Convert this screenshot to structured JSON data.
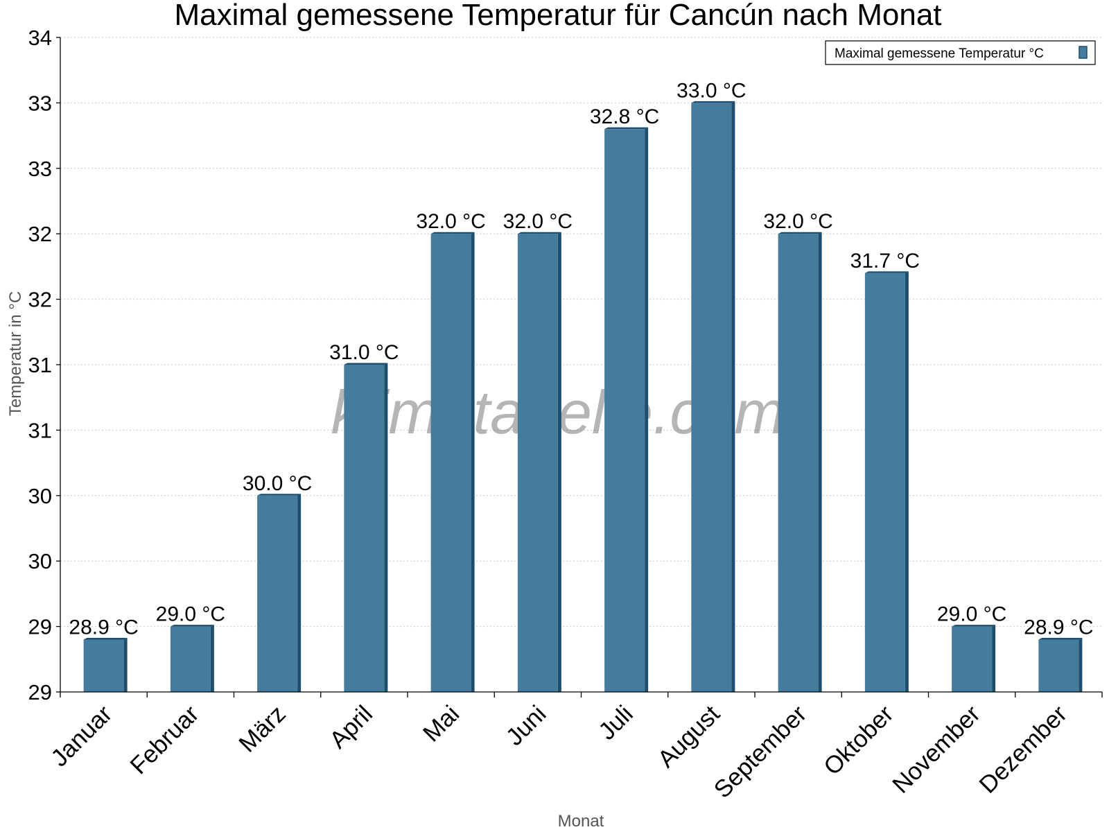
{
  "chart_data": {
    "type": "bar",
    "title": "Maximal gemessene Temperatur für Cancún nach Monat",
    "xlabel": "Monat",
    "ylabel": "Temperatur in °C",
    "categories": [
      "Januar",
      "Februar",
      "März",
      "April",
      "Mai",
      "Juni",
      "Juli",
      "August",
      "September",
      "Oktober",
      "November",
      "Dezember"
    ],
    "series": [
      {
        "name": "Maximal gemessene Temperatur °C",
        "values": [
          28.9,
          29.0,
          30.0,
          31.0,
          32.0,
          32.0,
          32.8,
          33.0,
          32.0,
          31.7,
          29.0,
          28.9
        ],
        "labels": [
          "28.9 °C",
          "29.0 °C",
          "30.0 °C",
          "31.0 °C",
          "32.0 °C",
          "32.0 °C",
          "32.8 °C",
          "33.0 °C",
          "32.0 °C",
          "31.7 °C",
          "29.0 °C",
          "28.9 °C"
        ],
        "color": "#457b9d",
        "edge_color": "#1d4e6e"
      }
    ],
    "ylim": [
      28.5,
      33.5
    ],
    "ytick_values": [
      28.5,
      29.0,
      29.5,
      30.0,
      30.5,
      31.0,
      31.5,
      32.0,
      32.5,
      33.0,
      33.5
    ],
    "ytick_labels": [
      "29",
      "29",
      "30",
      "30",
      "31",
      "31",
      "32",
      "32",
      "33",
      "33",
      "34"
    ],
    "grid": true,
    "legend_position": "top-right",
    "watermark": "klimatabelle.com"
  }
}
